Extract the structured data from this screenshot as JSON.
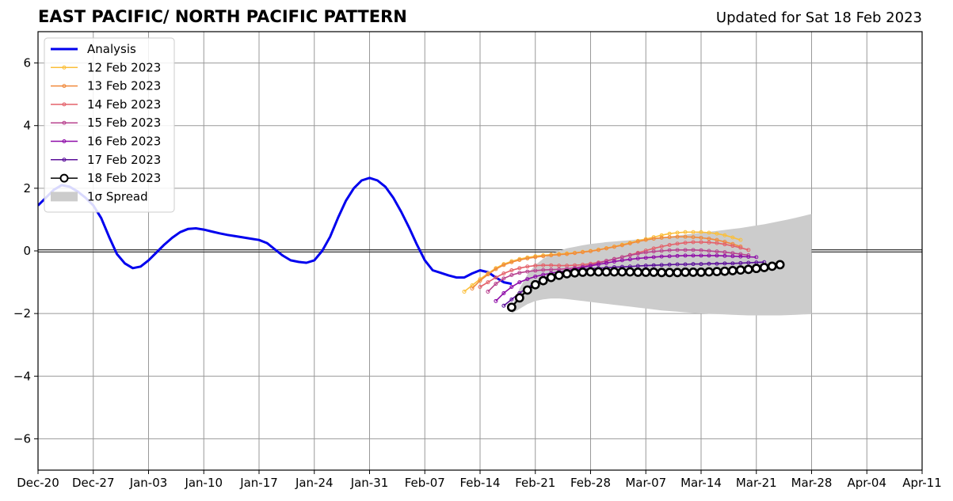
{
  "chart_data": {
    "type": "line",
    "title": "EAST PACIFIC/ NORTH PACIFIC PATTERN",
    "updated": "Updated for Sat 18 Feb 2023",
    "xlabel": "",
    "ylabel": "",
    "grid": true,
    "legend_position": "top-left",
    "x_ticks": [
      "Dec-20",
      "Dec-27",
      "Jan-03",
      "Jan-10",
      "Jan-17",
      "Jan-24",
      "Jan-31",
      "Feb-07",
      "Feb-14",
      "Feb-21",
      "Feb-28",
      "Mar-07",
      "Mar-14",
      "Mar-21",
      "Mar-28",
      "Apr-04",
      "Apr-11"
    ],
    "x_range": [
      "2022-12-20",
      "2023-04-11"
    ],
    "ylim": [
      -7,
      7
    ],
    "y_ticks": [
      -6,
      -4,
      -2,
      0,
      2,
      4,
      6
    ],
    "y_tick_labels": [
      "−6",
      "−4",
      "−2",
      "0",
      "2",
      "4",
      "6"
    ],
    "series": [
      {
        "name": "Analysis",
        "color": "#0000ee",
        "start": "2022-12-20",
        "values": [
          1.45,
          1.7,
          1.95,
          2.1,
          2.05,
          1.9,
          1.7,
          1.45,
          1.05,
          0.45,
          -0.1,
          -0.4,
          -0.55,
          -0.5,
          -0.3,
          -0.05,
          0.2,
          0.42,
          0.6,
          0.7,
          0.72,
          0.68,
          0.62,
          0.56,
          0.51,
          0.47,
          0.43,
          0.39,
          0.35,
          0.25,
          0.05,
          -0.15,
          -0.3,
          -0.35,
          -0.38,
          -0.3,
          0.0,
          0.45,
          1.05,
          1.6,
          2.0,
          2.25,
          2.33,
          2.25,
          2.05,
          1.7,
          1.25,
          0.75,
          0.2,
          -0.3,
          -0.62,
          -0.7,
          -0.78,
          -0.85,
          -0.85,
          -0.72,
          -0.62,
          -0.68,
          -0.85,
          -1.0,
          -1.05
        ]
      },
      {
        "name": "12 Feb 2023",
        "color": "#fbbf3a",
        "start": "2023-02-12",
        "values": [
          -1.3,
          -1.1,
          -0.9,
          -0.72,
          -0.55,
          -0.42,
          -0.33,
          -0.26,
          -0.21,
          -0.17,
          -0.14,
          -0.12,
          -0.1,
          -0.08,
          -0.06,
          -0.03,
          0.0,
          0.04,
          0.09,
          0.14,
          0.2,
          0.26,
          0.32,
          0.38,
          0.44,
          0.5,
          0.55,
          0.58,
          0.6,
          0.6,
          0.6,
          0.58,
          0.55,
          0.5,
          0.43,
          0.35
        ]
      },
      {
        "name": "13 Feb 2023",
        "color": "#f08a3c",
        "start": "2023-02-13",
        "values": [
          -1.2,
          -0.95,
          -0.75,
          -0.58,
          -0.45,
          -0.36,
          -0.29,
          -0.24,
          -0.2,
          -0.17,
          -0.14,
          -0.12,
          -0.1,
          -0.07,
          -0.04,
          -0.01,
          0.03,
          0.08,
          0.13,
          0.18,
          0.24,
          0.3,
          0.35,
          0.39,
          0.42,
          0.44,
          0.45,
          0.45,
          0.44,
          0.42,
          0.39,
          0.35,
          0.29,
          0.22,
          0.14
        ]
      },
      {
        "name": "14 Feb 2023",
        "color": "#e4616a",
        "start": "2023-02-14",
        "values": [
          -1.15,
          -1.0,
          -0.85,
          -0.72,
          -0.62,
          -0.55,
          -0.5,
          -0.47,
          -0.46,
          -0.46,
          -0.47,
          -0.47,
          -0.46,
          -0.44,
          -0.41,
          -0.37,
          -0.32,
          -0.26,
          -0.2,
          -0.13,
          -0.06,
          0.01,
          0.08,
          0.14,
          0.19,
          0.23,
          0.26,
          0.28,
          0.28,
          0.27,
          0.25,
          0.21,
          0.16,
          0.1,
          0.03
        ]
      },
      {
        "name": "15 Feb 2023",
        "color": "#b8438f",
        "start": "2023-02-15",
        "values": [
          -1.3,
          -1.05,
          -0.88,
          -0.77,
          -0.7,
          -0.66,
          -0.63,
          -0.61,
          -0.6,
          -0.59,
          -0.57,
          -0.54,
          -0.5,
          -0.45,
          -0.39,
          -0.32,
          -0.26,
          -0.2,
          -0.14,
          -0.09,
          -0.05,
          -0.02,
          0.0,
          0.02,
          0.03,
          0.03,
          0.03,
          0.02,
          0.0,
          -0.02,
          -0.04,
          -0.07,
          -0.1,
          -0.14
        ]
      },
      {
        "name": "16 Feb 2023",
        "color": "#8e0ca8",
        "start": "2023-02-16",
        "values": [
          -1.6,
          -1.35,
          -1.15,
          -1.0,
          -0.9,
          -0.82,
          -0.76,
          -0.71,
          -0.67,
          -0.63,
          -0.58,
          -0.53,
          -0.48,
          -0.43,
          -0.39,
          -0.34,
          -0.3,
          -0.27,
          -0.24,
          -0.22,
          -0.2,
          -0.18,
          -0.17,
          -0.16,
          -0.15,
          -0.15,
          -0.15,
          -0.15,
          -0.15,
          -0.16,
          -0.17,
          -0.18,
          -0.19,
          -0.2
        ]
      },
      {
        "name": "17 Feb 2023",
        "color": "#5b0f9a",
        "start": "2023-02-17",
        "values": [
          -1.75,
          -1.55,
          -1.35,
          -1.17,
          -1.02,
          -0.9,
          -0.8,
          -0.72,
          -0.66,
          -0.62,
          -0.59,
          -0.57,
          -0.55,
          -0.54,
          -0.52,
          -0.51,
          -0.5,
          -0.48,
          -0.47,
          -0.46,
          -0.45,
          -0.44,
          -0.43,
          -0.43,
          -0.42,
          -0.42,
          -0.41,
          -0.41,
          -0.4,
          -0.4,
          -0.39,
          -0.38,
          -0.37,
          -0.36
        ]
      },
      {
        "name": "18 Feb 2023",
        "color": "#000000",
        "start": "2023-02-18",
        "values": [
          -1.8,
          -1.5,
          -1.25,
          -1.08,
          -0.95,
          -0.85,
          -0.78,
          -0.73,
          -0.7,
          -0.68,
          -0.67,
          -0.67,
          -0.67,
          -0.67,
          -0.67,
          -0.67,
          -0.68,
          -0.68,
          -0.68,
          -0.69,
          -0.69,
          -0.69,
          -0.68,
          -0.68,
          -0.68,
          -0.67,
          -0.66,
          -0.65,
          -0.63,
          -0.61,
          -0.59,
          -0.56,
          -0.53,
          -0.49,
          -0.44
        ]
      }
    ],
    "spread": {
      "name": "1σ Spread",
      "color": "#cccccc",
      "start": "2023-02-18",
      "upper": [
        -1.8,
        -1.2,
        -0.75,
        -0.45,
        -0.25,
        -0.1,
        0.0,
        0.08,
        0.13,
        0.18,
        0.22,
        0.25,
        0.28,
        0.3,
        0.32,
        0.34,
        0.37,
        0.39,
        0.41,
        0.44,
        0.46,
        0.49,
        0.52,
        0.55,
        0.58,
        0.61,
        0.64,
        0.67,
        0.7,
        0.73,
        0.77,
        0.81,
        0.85,
        0.9,
        0.95,
        1.0,
        1.06,
        1.12,
        1.18
      ],
      "lower": [
        -2.0,
        -1.85,
        -1.7,
        -1.6,
        -1.55,
        -1.52,
        -1.52,
        -1.54,
        -1.57,
        -1.6,
        -1.63,
        -1.66,
        -1.69,
        -1.72,
        -1.75,
        -1.78,
        -1.81,
        -1.84,
        -1.87,
        -1.9,
        -1.92,
        -1.94,
        -1.96,
        -1.98,
        -2.0,
        -2.01,
        -2.02,
        -2.03,
        -2.04,
        -2.05,
        -2.06,
        -2.06,
        -2.06,
        -2.06,
        -2.06,
        -2.05,
        -2.04,
        -2.03,
        -2.02
      ]
    }
  }
}
